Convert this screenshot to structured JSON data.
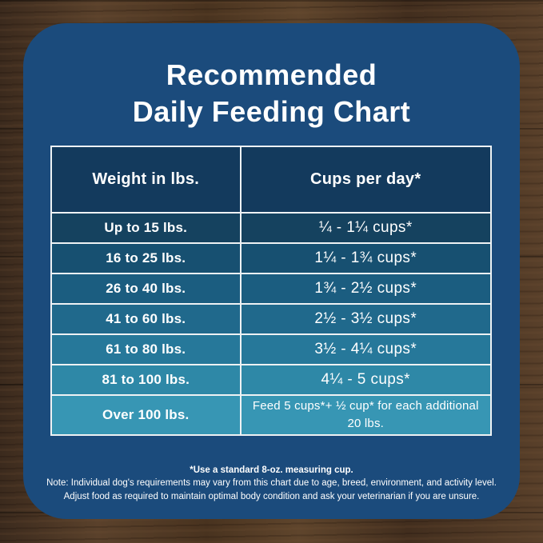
{
  "title": {
    "line1": "Recommended",
    "line2": "Daily Feeding Chart"
  },
  "table": {
    "headers": {
      "weight": "Weight in lbs.",
      "cups": "Cups per day*"
    },
    "header_color": "#133a5d",
    "rows": [
      {
        "weight": "Up to 15 lbs.",
        "cups": "¼ - 1¼ cups*",
        "color": "#15425f"
      },
      {
        "weight": "16 to 25 lbs.",
        "cups": "1¼ - 1¾ cups*",
        "color": "#175071"
      },
      {
        "weight": "26 to 40 lbs.",
        "cups": "1¾ - 2½ cups*",
        "color": "#1b5d80"
      },
      {
        "weight": "41 to 60 lbs.",
        "cups": "2½ - 3½ cups*",
        "color": "#20698c"
      },
      {
        "weight": "61 to 80 lbs.",
        "cups": "3½ - 4¼ cups*",
        "color": "#26789a"
      },
      {
        "weight": "81 to 100 lbs.",
        "cups": "4¼ - 5 cups*",
        "color": "#2e88a7"
      },
      {
        "weight": "Over 100 lbs.",
        "cups": "Feed 5 cups*+ ½ cup* for each additional 20 lbs.",
        "color": "#3796b4"
      }
    ]
  },
  "footnotes": {
    "line1": "*Use a standard 8-oz. measuring cup.",
    "line2": "Note: Individual dog's requirements may vary from this chart due to age, breed, environment, and activity level.",
    "line3": "Adjust food as required to maintain optimal body condition and ask your veterinarian if you are unsure."
  },
  "colors": {
    "card": "#1b4b7c",
    "header_cell": "#133a5d",
    "border": "#eef2f4",
    "text": "#ffffff",
    "wood_base": "#4e3827"
  },
  "chart_data": {
    "type": "table",
    "title": "Recommended Daily Feeding Chart",
    "columns": [
      "Weight in lbs.",
      "Cups per day*"
    ],
    "rows": [
      [
        "Up to 15 lbs.",
        "¼ - 1¼ cups*"
      ],
      [
        "16 to 25 lbs.",
        "1¼ - 1¾ cups*"
      ],
      [
        "26 to 40 lbs.",
        "1¾ - 2½ cups*"
      ],
      [
        "41 to 60 lbs.",
        "2½ - 3½ cups*"
      ],
      [
        "61 to 80 lbs.",
        "3½ - 4¼ cups*"
      ],
      [
        "81 to 100 lbs.",
        "4¼ - 5 cups*"
      ],
      [
        "Over 100 lbs.",
        "Feed 5 cups*+ ½ cup* for each additional 20 lbs."
      ]
    ],
    "footnotes": [
      "*Use a standard 8-oz. measuring cup.",
      "Note: Individual dog's requirements may vary from this chart due to age, breed, environment, and activity level.",
      "Adjust food as required to maintain optimal body condition and ask your veterinarian if you are unsure."
    ],
    "layout_hints": {
      "row_color_gradient": [
        "#15425f",
        "#3796b4"
      ],
      "grid": true
    }
  }
}
